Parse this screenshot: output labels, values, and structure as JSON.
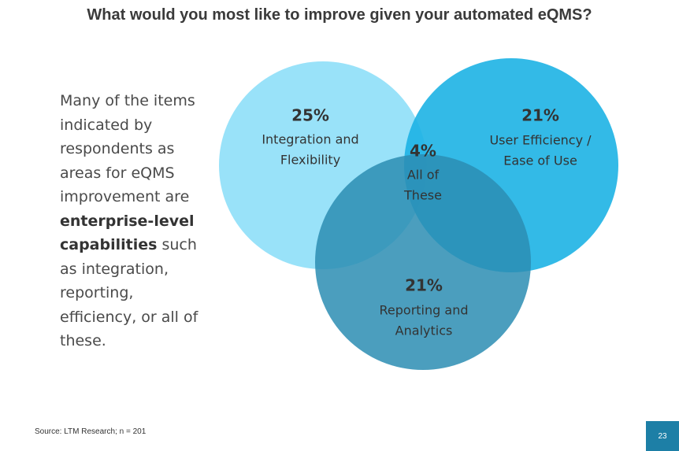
{
  "header": {
    "title": "What would you most like to improve given your automated eQMS?"
  },
  "paragraph": [
    {
      "text": "Many of the items indicated by respondents as areas for eQMS improvement are ",
      "bold": false
    },
    {
      "text": "enterprise-level capabilities",
      "bold": true
    },
    {
      "text": " such as integration, reporting, efficiency, or all of these.",
      "bold": false
    }
  ],
  "venn": {
    "sets": [
      {
        "value": "25%",
        "label": [
          "Integration and",
          "Flexibility"
        ]
      },
      {
        "value": "21%",
        "label": [
          "User Efficiency /",
          "Ease of Use"
        ]
      },
      {
        "value": "21%",
        "label": [
          "Reporting and",
          "Analytics"
        ]
      }
    ],
    "intersection": {
      "value": "4%",
      "label": [
        "All of",
        "These"
      ]
    }
  },
  "footer": {
    "source": "Source: LTM Research; n = 201",
    "page": "23"
  }
}
